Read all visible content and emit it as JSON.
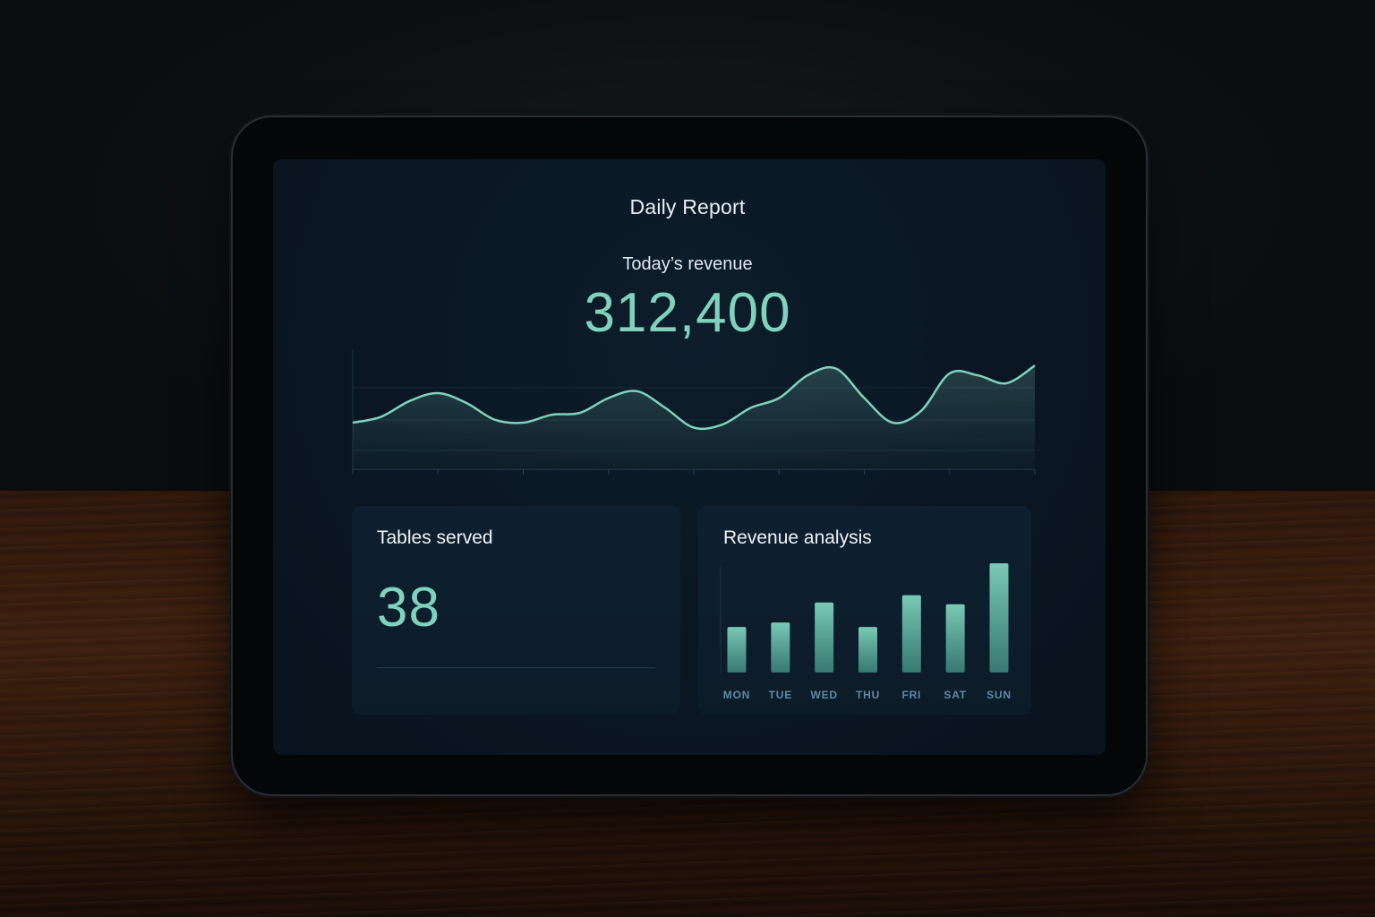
{
  "report": {
    "title": "Daily Report",
    "revenue_label": "Today’s revenue",
    "revenue_value": "312,400"
  },
  "tables_card": {
    "title": "Tables served",
    "value": "38"
  },
  "analysis_card": {
    "title": "Revenue analysis"
  },
  "colors": {
    "accent": "#7fd3bc",
    "screen_bg": "#0a1622",
    "card_bg": "#0d1e2c",
    "axis_label": "#5f8aa2"
  },
  "chart_data": [
    {
      "type": "line",
      "x": [
        0,
        1,
        2,
        3,
        4,
        5,
        6,
        7,
        8,
        9,
        10,
        11,
        12,
        13,
        14,
        15,
        16,
        17,
        18,
        19,
        20,
        21,
        22,
        23,
        24
      ],
      "series": [
        {
          "values": [
            0.3,
            0.36,
            0.52,
            0.6,
            0.5,
            0.33,
            0.3,
            0.38,
            0.4,
            0.55,
            0.62,
            0.45,
            0.25,
            0.28,
            0.45,
            0.55,
            0.78,
            0.85,
            0.55,
            0.3,
            0.42,
            0.8,
            0.78,
            0.7,
            0.88
          ]
        }
      ],
      "ylim": [
        0,
        1
      ],
      "grid": true,
      "legend": "none"
    },
    {
      "type": "bar",
      "categories": [
        "MON",
        "TUE",
        "WED",
        "THU",
        "FRI",
        "SAT",
        "SUN"
      ],
      "values": [
        50,
        55,
        77,
        50,
        85,
        75,
        120
      ],
      "ylim": [
        0,
        120
      ],
      "grid": false,
      "legend": "none"
    }
  ]
}
